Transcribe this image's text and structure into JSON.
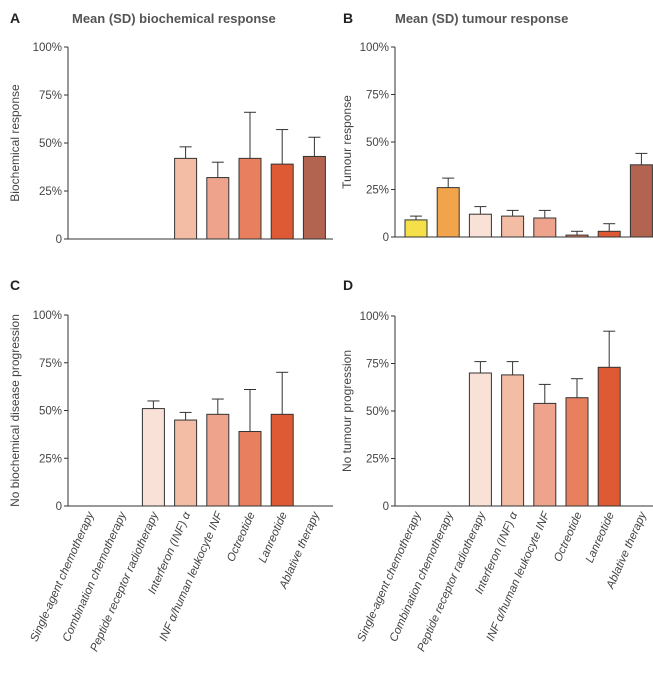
{
  "chart_data": [
    {
      "panel": "A",
      "type": "bar",
      "title": "Mean (SD) biochemical response",
      "ylabel": "Biochemical response",
      "ylim": [
        0,
        100
      ],
      "yticks": [
        "0",
        "25%",
        "50%",
        "75%",
        "100%"
      ],
      "categories": [
        "Single-agent chemotherapy",
        "Combination chemotherapy",
        "Peptide receptor radiotherapy",
        "Interferon (INF) α",
        "INF α/human leukocyte INF",
        "Octreotide",
        "Lanreotide",
        "Ablative therapy"
      ],
      "values": [
        null,
        null,
        null,
        42,
        32,
        42,
        39,
        43
      ],
      "errors": [
        null,
        null,
        null,
        6,
        8,
        24,
        18,
        10
      ],
      "colors": [
        "#f5e04a",
        "#f1a44a",
        "#f9e1d7",
        "#f2bda4",
        "#eea38d",
        "#e88060",
        "#de5a35",
        "#b36450"
      ]
    },
    {
      "panel": "B",
      "type": "bar",
      "title": "Mean (SD) tumour response",
      "ylabel": "Tumour response",
      "ylim": [
        0,
        100
      ],
      "yticks": [
        "0",
        "25%",
        "50%",
        "75%",
        "100%"
      ],
      "categories": [
        "Single-agent chemotherapy",
        "Combination chemotherapy",
        "Peptide receptor radiotherapy",
        "Interferon (INF) α",
        "INF α/human leukocyte INF",
        "Octreotide",
        "Lanreotide",
        "Ablative therapy"
      ],
      "values": [
        9,
        26,
        12,
        11,
        10,
        1,
        3,
        38
      ],
      "errors": [
        2,
        5,
        4,
        3,
        4,
        2,
        4,
        6
      ],
      "colors": [
        "#f5e04a",
        "#f1a44a",
        "#f9e1d7",
        "#f2bda4",
        "#eea38d",
        "#e88060",
        "#de5a35",
        "#b36450"
      ]
    },
    {
      "panel": "C",
      "type": "bar",
      "title": "",
      "ylabel": "No biochemical disease progression",
      "ylim": [
        0,
        100
      ],
      "yticks": [
        "0",
        "25%",
        "50%",
        "75%",
        "100%"
      ],
      "categories": [
        "Single-agent chemotherapy",
        "Combination chemotherapy",
        "Peptide receptor radiotherapy",
        "Interferon (INF) α",
        "INF α/human leukocyte INF",
        "Octreotide",
        "Lanreotide",
        "Ablative therapy"
      ],
      "values": [
        null,
        null,
        51,
        45,
        48,
        39,
        48,
        null
      ],
      "errors": [
        null,
        null,
        4,
        4,
        8,
        22,
        22,
        null
      ],
      "colors": [
        "#f5e04a",
        "#f1a44a",
        "#f9e1d7",
        "#f2bda4",
        "#eea38d",
        "#e88060",
        "#de5a35",
        "#b36450"
      ]
    },
    {
      "panel": "D",
      "type": "bar",
      "title": "",
      "ylabel": "No tumour progression",
      "ylim": [
        0,
        100
      ],
      "yticks": [
        "0",
        "25%",
        "50%",
        "75%",
        "100%"
      ],
      "categories": [
        "Single-agent chemotherapy",
        "Combination chemotherapy",
        "Peptide receptor radiotherapy",
        "Interferon (INF) α",
        "INF α/human leukocyte INF",
        "Octreotide",
        "Lanreotide",
        "Ablative therapy"
      ],
      "values": [
        null,
        null,
        70,
        69,
        54,
        57,
        73,
        null
      ],
      "errors": [
        null,
        null,
        6,
        7,
        10,
        10,
        19,
        null
      ],
      "colors": [
        "#f5e04a",
        "#f1a44a",
        "#f9e1d7",
        "#f2bda4",
        "#eea38d",
        "#e88060",
        "#de5a35",
        "#b36450"
      ]
    }
  ]
}
